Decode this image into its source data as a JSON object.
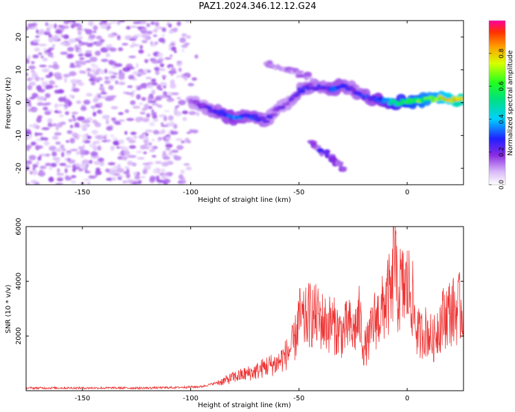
{
  "chart_data": [
    {
      "type": "heatmap",
      "title": "PAZ1.2024.346.12.12.G24",
      "xlabel": "Height of straight line (km)",
      "ylabel": "Frequency (Hz)",
      "xlim": [
        -176,
        26
      ],
      "ylim": [
        -25,
        25
      ],
      "xticks": [
        -150,
        -100,
        -50,
        0
      ],
      "yticks": [
        -20,
        -10,
        0,
        10,
        20
      ],
      "colorbar": {
        "label": "Normalized spectral amplitude",
        "range": [
          0,
          1
        ],
        "ticks": [
          0.0,
          0.2,
          0.4,
          0.6,
          0.8
        ]
      },
      "ridge": {
        "x": [
          -100,
          -95,
          -90,
          -85,
          -80,
          -75,
          -70,
          -65,
          -60,
          -55,
          -50,
          -45,
          -40,
          -35,
          -30,
          -25,
          -20,
          -15,
          -10,
          -5,
          0,
          5,
          10,
          15,
          20,
          25
        ],
        "y": [
          0.5,
          -1.0,
          -2.5,
          -3.5,
          -5.0,
          -4.0,
          -4.5,
          -5.5,
          -2.0,
          0.0,
          3.5,
          5.0,
          4.5,
          4.0,
          5.5,
          4.0,
          2.0,
          1.0,
          0.5,
          0.0,
          0.5,
          0.5,
          1.0,
          1.5,
          1.0,
          1.0
        ],
        "amplitude": [
          0.15,
          0.2,
          0.25,
          0.3,
          0.35,
          0.3,
          0.3,
          0.25,
          0.2,
          0.2,
          0.25,
          0.25,
          0.25,
          0.3,
          0.3,
          0.25,
          0.3,
          0.3,
          0.4,
          0.5,
          0.6,
          0.65,
          0.7,
          0.75,
          0.85,
          0.95
        ]
      },
      "branches": [
        {
          "x": [
            -45,
            -35,
            -30
          ],
          "y": [
            -12,
            -17,
            -20
          ],
          "amplitude": 0.2
        },
        {
          "x": [
            -65,
            -55,
            -45
          ],
          "y": [
            12,
            10,
            8
          ],
          "amplitude": 0.12
        }
      ],
      "noise_region": {
        "x_range": [
          -176,
          -100
        ],
        "amplitude": 0.08
      }
    },
    {
      "type": "line",
      "xlabel": "Height of straight line (km)",
      "ylabel": "SNR (10 * v/v)",
      "xlim": [
        -176,
        26
      ],
      "ylim": [
        0,
        6000
      ],
      "xticks": [
        -150,
        -100,
        -50,
        0
      ],
      "yticks": [
        2000,
        4000,
        6000
      ],
      "color": "#ee3333",
      "series": [
        {
          "x": [
            -176,
            -160,
            -140,
            -120,
            -105,
            -95,
            -90,
            -85,
            -80,
            -75,
            -70,
            -65,
            -60,
            -55,
            -52,
            -50,
            -48,
            -45,
            -42,
            -40,
            -37,
            -35,
            -32,
            -30,
            -27,
            -25,
            -22,
            -20,
            -18,
            -15,
            -12,
            -10,
            -8,
            -7,
            -6,
            -5,
            -4,
            -3,
            -2,
            0,
            2,
            4,
            6,
            8,
            10,
            12,
            14,
            16,
            18,
            20,
            22,
            24,
            26
          ],
          "y": [
            100,
            100,
            100,
            100,
            120,
            150,
            250,
            350,
            500,
            600,
            700,
            900,
            1000,
            1400,
            1800,
            2700,
            2500,
            2800,
            2700,
            2600,
            2400,
            2500,
            2200,
            2100,
            2400,
            2100,
            2700,
            1500,
            1800,
            2600,
            2800,
            3300,
            3500,
            3300,
            6000,
            3700,
            3600,
            3800,
            3700,
            3800,
            3600,
            2300,
            2000,
            2200,
            2100,
            1800,
            2300,
            2600,
            2800,
            2900,
            2900,
            3000,
            3000
          ]
        }
      ]
    }
  ]
}
